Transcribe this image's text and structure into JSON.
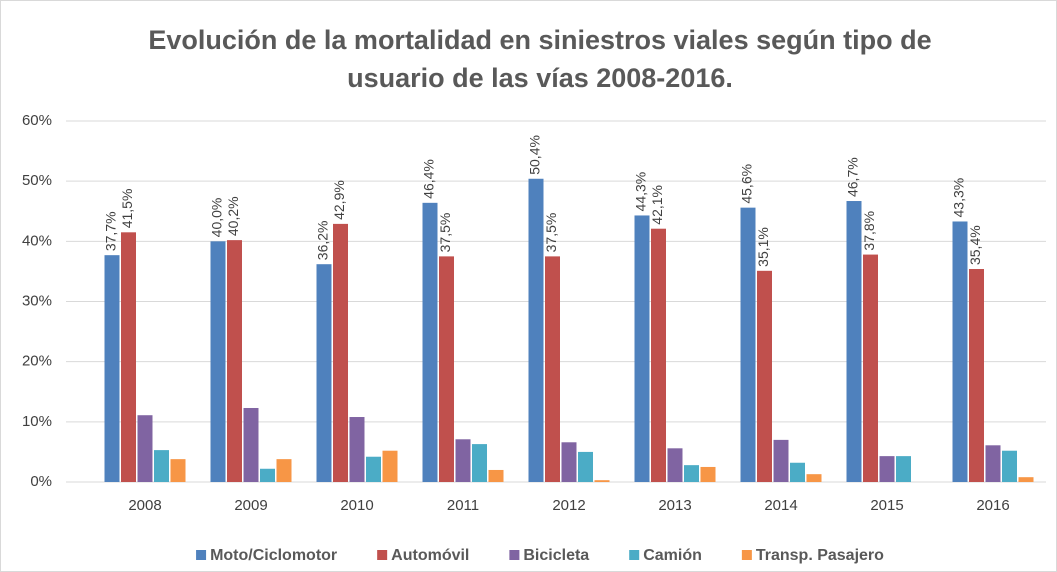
{
  "chart_data": {
    "type": "bar",
    "title": [
      "Evolución de la mortalidad en siniestros viales según tipo de",
      "usuario de las vías 2008-2016."
    ],
    "categories": [
      "2008",
      "2009",
      "2010",
      "2011",
      "2012",
      "2013",
      "2014",
      "2015",
      "2016"
    ],
    "series": [
      {
        "name": "Moto/Ciclomotor",
        "color": "#4f81bd",
        "values": [
          37.7,
          40.0,
          36.2,
          46.4,
          50.4,
          44.3,
          45.6,
          46.7,
          43.3
        ],
        "value_labels": [
          "37,7%",
          "40,0%",
          "36,2%",
          "46,4%",
          "50,4%",
          "44,3%",
          "45,6%",
          "46,7%",
          "43,3%"
        ]
      },
      {
        "name": "Automóvil",
        "color": "#c0504d",
        "values": [
          41.5,
          40.2,
          42.9,
          37.5,
          37.5,
          42.1,
          35.1,
          37.8,
          35.4
        ],
        "value_labels": [
          "41,5%",
          "40,2%",
          "42,9%",
          "37,5%",
          "37,5%",
          "42,1%",
          "35,1%",
          "37,8%",
          "35,4%"
        ]
      },
      {
        "name": "Bicicleta",
        "color": "#8064a2",
        "values": [
          11.1,
          12.3,
          10.8,
          7.1,
          6.6,
          5.6,
          7.0,
          4.3,
          6.1
        ]
      },
      {
        "name": "Camión",
        "color": "#4bacc6",
        "values": [
          5.3,
          2.2,
          4.2,
          6.3,
          5.0,
          2.8,
          3.2,
          4.3,
          5.2
        ]
      },
      {
        "name": "Transp. Pasajero",
        "color": "#f79646",
        "values": [
          3.8,
          3.8,
          5.2,
          2.0,
          0.3,
          2.5,
          1.3,
          0,
          0.8
        ]
      }
    ],
    "ylim": [
      0,
      60
    ],
    "yticks": [
      {
        "value": 0,
        "label": "0%"
      },
      {
        "value": 10,
        "label": "10%"
      },
      {
        "value": 20,
        "label": "20%"
      },
      {
        "value": 30,
        "label": "30%"
      },
      {
        "value": 40,
        "label": "40%"
      },
      {
        "value": 50,
        "label": "50%"
      },
      {
        "value": 60,
        "label": "60%"
      }
    ],
    "grid": true,
    "legend": "bottom"
  }
}
